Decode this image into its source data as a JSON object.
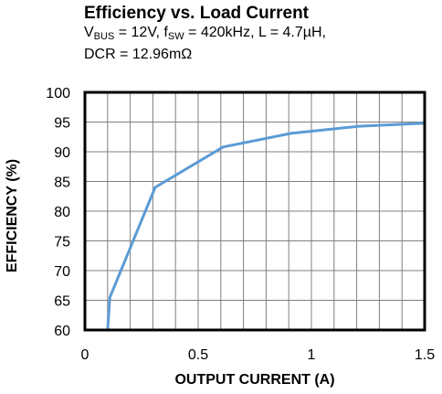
{
  "chart_data": {
    "type": "line",
    "title": "Efficiency vs. Load Current",
    "subtitle": {
      "vbus_symbol": "V",
      "vbus_sub": "BUS",
      "vbus_value": " = 12V, ",
      "fsw_symbol": "f",
      "fsw_sub": "SW",
      "fsw_value": " = 420kHz, L = 4.7µH,",
      "line2": "DCR = 12.96mΩ"
    },
    "xlabel": "OUTPUT CURRENT  (A)",
    "ylabel": "EFFICIENCY (%)",
    "xlim": [
      0,
      1.5
    ],
    "ylim": [
      60,
      100
    ],
    "xticks": [
      0,
      0.5,
      1,
      1.5
    ],
    "xtick_labels": [
      "0",
      "0.5",
      "1",
      "1.5"
    ],
    "yticks": [
      60,
      65,
      70,
      75,
      80,
      85,
      90,
      95,
      100
    ],
    "ytick_labels": [
      "60",
      "65",
      "70",
      "75",
      "80",
      "85",
      "90",
      "95",
      "100"
    ],
    "grid": true,
    "line_color": "#5b9bd5",
    "series": [
      {
        "x": [
          0.1,
          0.11,
          0.31,
          0.61,
          0.91,
          1.21,
          1.5
        ],
        "y": [
          60,
          65.5,
          84,
          90.8,
          93.1,
          94.3,
          94.8
        ]
      }
    ]
  }
}
